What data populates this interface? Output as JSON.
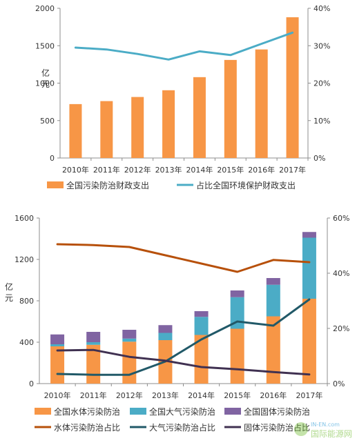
{
  "chart_data": [
    {
      "type": "bar",
      "categories": [
        "2010年",
        "2011年",
        "2012年",
        "2013年",
        "2014年",
        "2015年",
        "2016年",
        "2017年"
      ],
      "series": [
        {
          "name": "全国污染防治财政支出",
          "kind": "bar",
          "axis": "left",
          "color": "#F79646",
          "values": [
            720,
            760,
            815,
            905,
            1080,
            1310,
            1450,
            1880
          ]
        },
        {
          "name": "占比全国环境保护财政支出",
          "kind": "line",
          "axis": "right",
          "color": "#4BACC6",
          "values": [
            29.5,
            29.0,
            27.8,
            26.3,
            28.5,
            27.5,
            30.5,
            33.5
          ]
        }
      ],
      "ylabel": "亿元",
      "yleft": {
        "lim": [
          0,
          2000
        ],
        "ticks": [
          "0",
          "500",
          "1000",
          "1500",
          "2000"
        ]
      },
      "yright": {
        "lim": [
          0,
          40
        ],
        "ticks": [
          "0%",
          "10%",
          "20%",
          "30%",
          "40%"
        ]
      },
      "grid": false,
      "legend": "bottom"
    },
    {
      "type": "bar",
      "stacked": true,
      "categories": [
        "2010年",
        "2011年",
        "2012年",
        "2013年",
        "2014年",
        "2015年",
        "2016年",
        "2017年"
      ],
      "series": [
        {
          "name": "全国水体污染防治",
          "kind": "bar",
          "axis": "left",
          "color": "#F79646",
          "values": [
            360,
            375,
            405,
            420,
            470,
            530,
            650,
            820
          ]
        },
        {
          "name": "全国大气污染防治",
          "kind": "bar",
          "axis": "left",
          "color": "#4BACC6",
          "values": [
            20,
            25,
            30,
            70,
            175,
            305,
            305,
            590
          ]
        },
        {
          "name": "全国固体污染防治",
          "kind": "bar",
          "axis": "left",
          "color": "#8064A2",
          "values": [
            95,
            100,
            85,
            75,
            55,
            65,
            65,
            55
          ]
        },
        {
          "name": "水体污染防治占比",
          "kind": "line",
          "axis": "right",
          "color": "#B7500A",
          "values": [
            50.5,
            50.2,
            49.5,
            46.5,
            43.5,
            40.5,
            44.8,
            44.0
          ]
        },
        {
          "name": "大气污染防治占比",
          "kind": "line",
          "axis": "right",
          "color": "#215968",
          "values": [
            3.5,
            3.2,
            3.2,
            8.0,
            16.0,
            22.5,
            21.0,
            30.5
          ]
        },
        {
          "name": "固体污染防治占比",
          "kind": "line",
          "axis": "right",
          "color": "#403151",
          "values": [
            12.0,
            12.2,
            9.7,
            8.3,
            6.0,
            5.2,
            4.2,
            3.3
          ]
        }
      ],
      "ylabel": "亿元",
      "yleft": {
        "lim": [
          0,
          1600
        ],
        "ticks": [
          "0",
          "400",
          "800",
          "1200",
          "1600"
        ]
      },
      "yright": {
        "lim": [
          0,
          60
        ],
        "ticks": [
          "0%",
          "20%",
          "40%",
          "60%"
        ]
      },
      "grid": false,
      "legend": "bottom"
    }
  ],
  "watermark": {
    "brand": "IN-EN.com",
    "text": "国际能源网"
  }
}
